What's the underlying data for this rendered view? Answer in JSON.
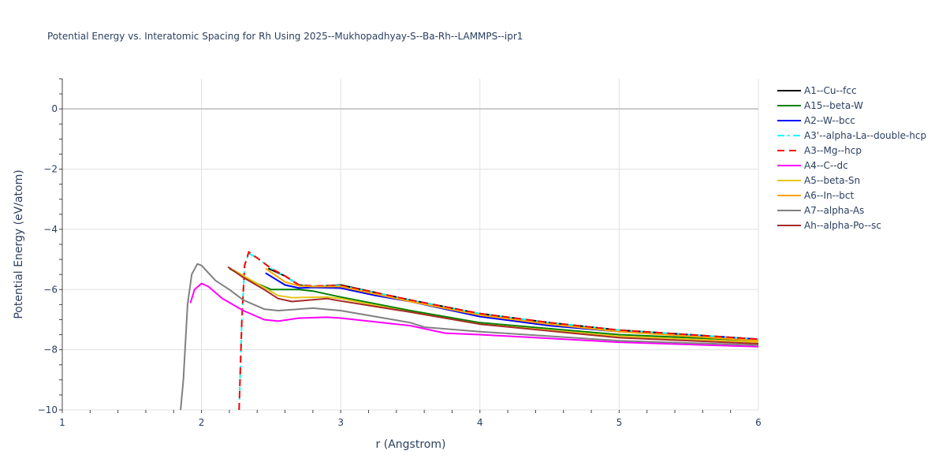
{
  "chart_data": {
    "type": "line",
    "title": "Potential Energy vs. Interatomic Spacing for Rh Using 2025--Mukhopadhyay-S--Ba-Rh--LAMMPS--ipr1",
    "xlabel": "r (Angstrom)",
    "ylabel": "Potential Energy (eV/atom)",
    "xlim": [
      1,
      6
    ],
    "ylim": [
      -10,
      1
    ],
    "xticks": [
      1,
      2,
      3,
      4,
      5,
      6
    ],
    "yticks": [
      0,
      -2,
      -4,
      -6,
      -8,
      -10
    ],
    "ytick_labels": [
      "0",
      "−2",
      "−4",
      "−6",
      "−8",
      "−10"
    ],
    "grid": true,
    "legend_position": "right",
    "series": [
      {
        "name": "A1--Cu--fcc",
        "color": "#000000",
        "dash": "solid",
        "x": [
          2.48,
          2.6,
          2.7,
          2.8,
          3.0,
          3.25,
          3.5,
          4.0,
          4.5,
          5.0,
          5.5,
          6.0
        ],
        "y": [
          -5.3,
          -5.55,
          -5.85,
          -5.9,
          -5.85,
          -6.1,
          -6.35,
          -6.8,
          -7.1,
          -7.35,
          -7.5,
          -7.65
        ]
      },
      {
        "name": "A15--beta-W",
        "color": "#008000",
        "dash": "solid",
        "x": [
          2.2,
          2.35,
          2.5,
          2.7,
          2.8,
          3.0,
          3.5,
          4.0,
          5.0,
          6.0
        ],
        "y": [
          -5.3,
          -5.7,
          -6.0,
          -6.0,
          -6.05,
          -6.25,
          -6.7,
          -7.1,
          -7.5,
          -7.7
        ]
      },
      {
        "name": "A2--W--bcc",
        "color": "#0000ff",
        "dash": "solid",
        "x": [
          2.46,
          2.6,
          2.7,
          2.8,
          3.0,
          3.25,
          3.5,
          4.0,
          4.5,
          5.0,
          6.0
        ],
        "y": [
          -5.45,
          -5.85,
          -5.95,
          -5.93,
          -5.95,
          -6.2,
          -6.4,
          -6.9,
          -7.2,
          -7.4,
          -7.65
        ]
      },
      {
        "name": "A3'--alpha-La--double-hcp",
        "color": "#00ffff",
        "dash": "dashdot",
        "x": [
          2.27,
          2.29,
          2.31,
          2.34,
          2.4,
          2.5,
          2.6,
          2.7,
          2.8,
          3.0,
          3.25,
          3.5,
          4.0,
          4.5,
          5.0,
          5.5,
          6.0
        ],
        "y": [
          -10,
          -7.0,
          -5.2,
          -4.8,
          -4.95,
          -5.3,
          -5.55,
          -5.85,
          -5.88,
          -5.87,
          -6.1,
          -6.35,
          -6.8,
          -7.1,
          -7.35,
          -7.5,
          -7.65
        ]
      },
      {
        "name": "A3--Mg--hcp",
        "color": "#ff0000",
        "dash": "dash",
        "x": [
          2.27,
          2.29,
          2.31,
          2.34,
          2.4,
          2.5,
          2.6,
          2.7,
          2.8,
          3.0,
          3.25,
          3.5,
          4.0,
          4.5,
          5.0,
          5.5,
          6.0
        ],
        "y": [
          -10,
          -7.0,
          -5.2,
          -4.75,
          -4.95,
          -5.3,
          -5.55,
          -5.85,
          -5.88,
          -5.87,
          -6.1,
          -6.35,
          -6.8,
          -7.1,
          -7.35,
          -7.5,
          -7.65
        ]
      },
      {
        "name": "A4--C--dc",
        "color": "#ff00ff",
        "dash": "solid",
        "x": [
          1.92,
          1.95,
          2.0,
          2.05,
          2.15,
          2.3,
          2.45,
          2.55,
          2.7,
          2.9,
          3.0,
          3.5,
          3.75,
          4.0,
          5.0,
          6.0
        ],
        "y": [
          -6.45,
          -6.0,
          -5.8,
          -5.9,
          -6.3,
          -6.7,
          -7.0,
          -7.05,
          -6.95,
          -6.92,
          -6.95,
          -7.2,
          -7.45,
          -7.5,
          -7.75,
          -7.9
        ]
      },
      {
        "name": "A5--beta-Sn",
        "color": "#e6c619",
        "dash": "solid",
        "x": [
          2.23,
          2.4,
          2.55,
          2.65,
          2.9,
          3.0,
          3.5,
          4.0,
          5.0,
          6.0
        ],
        "y": [
          -5.35,
          -5.8,
          -6.2,
          -6.27,
          -6.25,
          -6.3,
          -6.75,
          -7.15,
          -7.55,
          -7.75
        ]
      },
      {
        "name": "A6--In--bct",
        "color": "#ffa500",
        "dash": "solid",
        "x": [
          2.46,
          2.6,
          2.7,
          2.8,
          3.0,
          3.25,
          3.5,
          4.0,
          4.5,
          5.0,
          6.0
        ],
        "y": [
          -5.3,
          -5.75,
          -5.88,
          -5.9,
          -5.9,
          -6.15,
          -6.4,
          -6.85,
          -7.15,
          -7.4,
          -7.7
        ]
      },
      {
        "name": "A7--alpha-As",
        "color": "#808080",
        "dash": "solid",
        "x": [
          1.85,
          1.87,
          1.9,
          1.93,
          1.97,
          2.0,
          2.1,
          2.2,
          2.3,
          2.45,
          2.55,
          2.8,
          3.0,
          3.25,
          3.5,
          3.6,
          4.0,
          5.0,
          6.0
        ],
        "y": [
          -10,
          -9,
          -6.5,
          -5.5,
          -5.15,
          -5.2,
          -5.7,
          -6.0,
          -6.35,
          -6.65,
          -6.7,
          -6.62,
          -6.7,
          -6.9,
          -7.1,
          -7.25,
          -7.4,
          -7.7,
          -7.85
        ]
      },
      {
        "name": "Ah--alpha-Po--sc",
        "color": "#a52a2a",
        "dash": "solid",
        "x": [
          2.19,
          2.3,
          2.45,
          2.55,
          2.65,
          2.9,
          3.0,
          3.5,
          4.0,
          5.0,
          6.0
        ],
        "y": [
          -5.25,
          -5.6,
          -6.0,
          -6.3,
          -6.4,
          -6.3,
          -6.38,
          -6.75,
          -7.15,
          -7.6,
          -7.8
        ]
      }
    ]
  }
}
